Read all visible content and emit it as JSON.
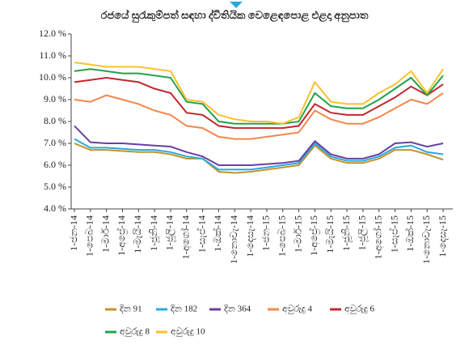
{
  "chart_data": {
    "type": "line",
    "title": "රජයේ සුරැකුම්පත් සඳහා ද්විතියික වෙළෙඳපොළ එළදා අනුපාත",
    "categories": [
      "1-ජන-14",
      "1-පෙබ-14",
      "1-මාර්-14",
      "1-අප්‍රේ-14",
      "1-මැයි-14",
      "1-ජූනි-14",
      "1-ජූලි-14",
      "1-අගෝ-14",
      "1-සැප්-14",
      "1-ඔක්-14",
      "1-නොවැ-14",
      "1-දෙසැ-14",
      "1-ජන-15",
      "1-පෙබ-15",
      "1-මාර්-15",
      "1-අප්‍රේ-15",
      "1-මැයි-15",
      "1-ජූනි-15",
      "1-ජූලි-15",
      "1-අගෝ-15",
      "1-සැප්-15",
      "1-ඔක්-15",
      "1-නොවැ-15",
      "1-දෙසැ-15"
    ],
    "series": [
      {
        "name": "දින 91",
        "color": "#c6922a",
        "values": [
          7.0,
          6.7,
          6.7,
          6.65,
          6.6,
          6.6,
          6.5,
          6.3,
          6.3,
          5.7,
          5.65,
          5.7,
          5.8,
          5.9,
          6.0,
          6.9,
          6.3,
          6.1,
          6.1,
          6.3,
          6.7,
          6.7,
          6.5,
          6.25
        ]
      },
      {
        "name": "දින 182",
        "color": "#27a9e1",
        "values": [
          7.2,
          6.8,
          6.8,
          6.75,
          6.7,
          6.7,
          6.6,
          6.4,
          6.3,
          5.8,
          5.8,
          5.8,
          5.9,
          6.0,
          6.1,
          7.0,
          6.4,
          6.2,
          6.2,
          6.4,
          6.8,
          6.9,
          6.6,
          6.5
        ]
      },
      {
        "name": "දින 364",
        "color": "#6a3fa0",
        "values": [
          7.8,
          7.05,
          7.0,
          7.0,
          6.95,
          6.9,
          6.85,
          6.6,
          6.4,
          6.0,
          6.0,
          6.0,
          6.05,
          6.1,
          6.2,
          7.1,
          6.5,
          6.3,
          6.3,
          6.5,
          7.0,
          7.05,
          6.85,
          7.0
        ]
      },
      {
        "name": "අවුරුදු 4",
        "color": "#f4874b",
        "values": [
          9.0,
          8.9,
          9.2,
          9.0,
          8.8,
          8.5,
          8.3,
          7.8,
          7.7,
          7.3,
          7.2,
          7.2,
          7.3,
          7.4,
          7.5,
          8.5,
          8.1,
          7.9,
          7.9,
          8.2,
          8.6,
          9.0,
          8.8,
          9.3
        ]
      },
      {
        "name": "අවුරුදු 6",
        "color": "#c1272d",
        "values": [
          9.8,
          9.9,
          10.0,
          9.9,
          9.8,
          9.5,
          9.3,
          8.4,
          8.3,
          7.8,
          7.7,
          7.7,
          7.7,
          7.7,
          7.8,
          8.8,
          8.4,
          8.3,
          8.3,
          8.7,
          9.1,
          9.6,
          9.2,
          9.7
        ]
      },
      {
        "name": "අවුරුදු 8",
        "color": "#21a34b",
        "values": [
          10.3,
          10.4,
          10.3,
          10.2,
          10.2,
          10.1,
          10.0,
          8.9,
          8.8,
          8.0,
          7.9,
          7.9,
          7.9,
          7.9,
          8.0,
          9.3,
          8.7,
          8.6,
          8.6,
          9.0,
          9.5,
          10.0,
          9.2,
          10.1
        ]
      },
      {
        "name": "අවුරුදු 10",
        "color": "#fbc02d",
        "values": [
          10.7,
          10.6,
          10.5,
          10.5,
          10.5,
          10.4,
          10.3,
          9.0,
          8.9,
          8.3,
          8.1,
          8.0,
          8.0,
          7.9,
          8.2,
          9.8,
          8.9,
          8.8,
          8.8,
          9.3,
          9.7,
          10.3,
          9.3,
          10.4
        ]
      }
    ],
    "ylim": [
      4,
      12
    ],
    "yticks": [
      {
        "value": 4,
        "label": "4.0 %"
      },
      {
        "value": 5,
        "label": "5.0 %"
      },
      {
        "value": 6,
        "label": "6.0 %"
      },
      {
        "value": 7,
        "label": "7.0 %"
      },
      {
        "value": 8,
        "label": "8.0 %"
      },
      {
        "value": 9,
        "label": "9.0 %"
      },
      {
        "value": 10,
        "label": "10.0 %"
      },
      {
        "value": 11,
        "label": "11.0 %"
      },
      {
        "value": 12,
        "label": "12.0 %"
      }
    ]
  }
}
